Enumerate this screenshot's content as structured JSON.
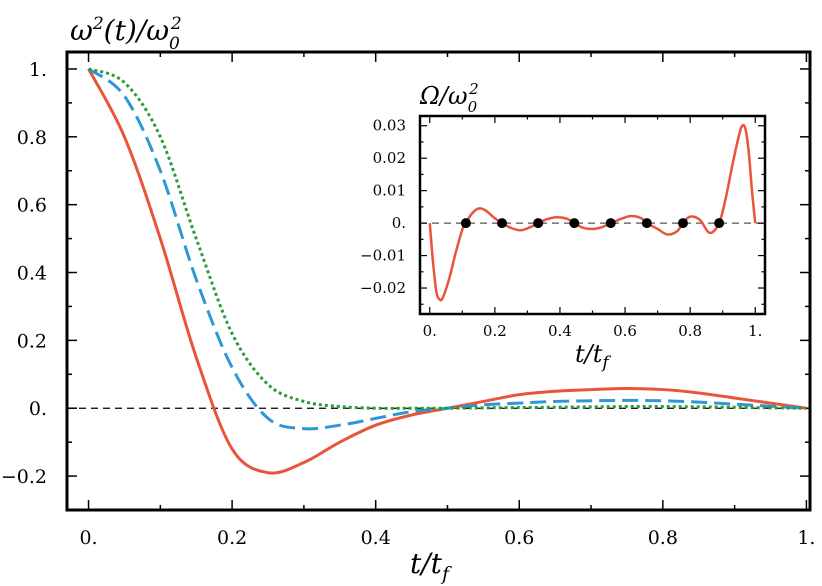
{
  "chart_data": [
    {
      "type": "line",
      "ylabel": "ω²(t)/ω₀²",
      "xlabel": "t/t_f",
      "xlim": [
        -0.03,
        1.005
      ],
      "ylim": [
        -0.3,
        1.05
      ],
      "x_ticks": [
        0,
        0.2,
        0.4,
        0.6,
        0.8,
        1
      ],
      "x_tick_labels": [
        "0.",
        "0.2",
        "0.4",
        "0.6",
        "0.8",
        "1."
      ],
      "y_ticks": [
        -0.2,
        0,
        0.2,
        0.4,
        0.6,
        0.8,
        1
      ],
      "y_tick_labels": [
        "−0.2",
        "0.",
        "0.2",
        "0.4",
        "0.6",
        "0.8",
        "1."
      ],
      "reference_line": {
        "y": 0,
        "style": "dashed",
        "color": "#000000"
      },
      "grid": false,
      "series": [
        {
          "color": "#e8553a",
          "style": "solid",
          "x": [
            0,
            0.05,
            0.1,
            0.15,
            0.2,
            0.25,
            0.3,
            0.35,
            0.4,
            0.45,
            0.5,
            0.55,
            0.6,
            0.65,
            0.7,
            0.75,
            0.8,
            0.85,
            0.9,
            0.95,
            1.0
          ],
          "y": [
            1.0,
            0.8,
            0.5,
            0.15,
            -0.12,
            -0.19,
            -0.16,
            -0.1,
            -0.05,
            -0.02,
            0.0,
            0.02,
            0.04,
            0.05,
            0.055,
            0.058,
            0.055,
            0.045,
            0.03,
            0.015,
            0.0
          ]
        },
        {
          "color": "#2e97d6",
          "style": "dashed",
          "x": [
            0,
            0.05,
            0.1,
            0.15,
            0.2,
            0.25,
            0.3,
            0.35,
            0.4,
            0.45,
            0.5,
            0.55,
            0.6,
            0.65,
            0.7,
            0.75,
            0.8,
            0.85,
            0.9,
            0.95,
            1.0
          ],
          "y": [
            1.0,
            0.92,
            0.7,
            0.38,
            0.12,
            -0.03,
            -0.06,
            -0.05,
            -0.03,
            -0.01,
            0.0,
            0.01,
            0.015,
            0.02,
            0.022,
            0.023,
            0.022,
            0.018,
            0.012,
            0.006,
            0.0
          ]
        },
        {
          "color": "#2e9a3a",
          "style": "dotted",
          "x": [
            0,
            0.05,
            0.1,
            0.15,
            0.2,
            0.25,
            0.3,
            0.35,
            0.4,
            0.45,
            0.5,
            0.55,
            0.6,
            0.65,
            0.7,
            0.75,
            0.8,
            0.85,
            0.9,
            0.95,
            1.0
          ],
          "y": [
            1.0,
            0.96,
            0.8,
            0.5,
            0.22,
            0.07,
            0.02,
            0.005,
            0.0,
            0.0,
            0.0,
            0.001,
            0.002,
            0.003,
            0.004,
            0.005,
            0.005,
            0.004,
            0.003,
            0.001,
            0.0
          ]
        }
      ]
    },
    {
      "type": "line",
      "ylabel": "Ω/ω₀²",
      "xlabel": "t/t_f",
      "xlim": [
        -0.03,
        1.03
      ],
      "ylim": [
        -0.028,
        0.033
      ],
      "x_ticks": [
        0,
        0.2,
        0.4,
        0.6,
        0.8,
        1
      ],
      "x_tick_labels": [
        "0.",
        "0.2",
        "0.4",
        "0.6",
        "0.8",
        "1."
      ],
      "y_ticks": [
        -0.02,
        -0.01,
        0,
        0.01,
        0.02,
        0.03
      ],
      "y_tick_labels": [
        "−0.02",
        "−0.01",
        "0.",
        "0.01",
        "0.02",
        "0.03"
      ],
      "reference_line": {
        "y": 0,
        "style": "dashed",
        "color": "#555555"
      },
      "series": [
        {
          "color": "#e8553a",
          "style": "solid",
          "x": [
            0,
            0.01,
            0.02,
            0.03,
            0.04,
            0.06,
            0.08,
            0.1,
            0.11,
            0.13,
            0.15,
            0.17,
            0.2,
            0.222,
            0.25,
            0.28,
            0.31,
            0.333,
            0.36,
            0.39,
            0.42,
            0.444,
            0.47,
            0.5,
            0.53,
            0.556,
            0.59,
            0.62,
            0.65,
            0.667,
            0.7,
            0.73,
            0.76,
            0.778,
            0.8,
            0.83,
            0.86,
            0.889,
            0.91,
            0.93,
            0.95,
            0.96,
            0.97,
            0.98,
            0.99,
            1.0
          ],
          "y": [
            0,
            -0.012,
            -0.021,
            -0.0235,
            -0.023,
            -0.017,
            -0.009,
            -0.002,
            0,
            0.003,
            0.0045,
            0.004,
            0.0015,
            0,
            -0.0015,
            -0.0022,
            -0.0012,
            0,
            0.0012,
            0.0018,
            0.0014,
            0,
            -0.0014,
            -0.0018,
            -0.0012,
            0,
            0.0014,
            0.0022,
            0.0015,
            0,
            -0.0018,
            -0.0035,
            -0.0025,
            0,
            0.002,
            0.001,
            -0.003,
            0,
            0.008,
            0.018,
            0.027,
            0.03,
            0.029,
            0.022,
            0.01,
            0
          ]
        },
        {
          "color": "#000000",
          "style": "markers",
          "x": [
            0.111,
            0.222,
            0.333,
            0.444,
            0.556,
            0.667,
            0.778,
            0.889
          ],
          "y": [
            0,
            0,
            0,
            0,
            0,
            0,
            0,
            0
          ]
        }
      ]
    }
  ]
}
